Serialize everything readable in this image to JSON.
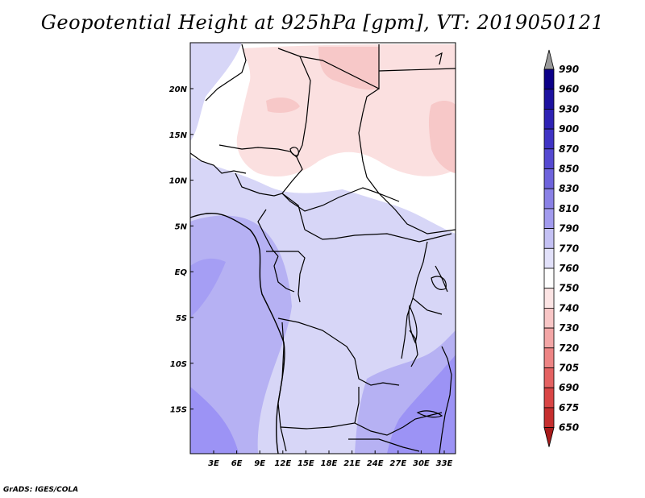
{
  "title": "Geopotential Height at 925hPa [gpm], VT: 2019050121",
  "credit": "GrADS: IGES/COLA",
  "colors": {
    "strong_blue": "#9c93f5",
    "mid_blue": "#b6b1f3",
    "light_blue": "#d7d6f7",
    "white": "#ffffff",
    "light_red": "#fbe0e0",
    "mid_red": "#f7c8c8"
  },
  "map": {
    "lat_labels": [
      "20N",
      "15N",
      "10N",
      "5N",
      "EQ",
      "5S",
      "10S",
      "15S"
    ],
    "lon_labels": [
      "3E",
      "6E",
      "9E",
      "12E",
      "15E",
      "18E",
      "21E",
      "24E",
      "27E",
      "30E",
      "33E"
    ]
  },
  "colorbar": {
    "levels": [
      {
        "label": "990",
        "color": "#0c0088"
      },
      {
        "label": "960",
        "color": "#1d12a0"
      },
      {
        "label": "930",
        "color": "#2e22b4"
      },
      {
        "label": "900",
        "color": "#3f33c4"
      },
      {
        "label": "870",
        "color": "#5549d1"
      },
      {
        "label": "850",
        "color": "#6e63dc"
      },
      {
        "label": "830",
        "color": "#8a81e6"
      },
      {
        "label": "810",
        "color": "#a29bee"
      },
      {
        "label": "790",
        "color": "#c4c1f4"
      },
      {
        "label": "770",
        "color": "#e2e1fa"
      },
      {
        "label": "760",
        "color": "#ffffff"
      },
      {
        "label": "750",
        "color": "#fce4e4"
      },
      {
        "label": "740",
        "color": "#f8c6c6"
      },
      {
        "label": "730",
        "color": "#f3a6a6"
      },
      {
        "label": "720",
        "color": "#ed8484"
      },
      {
        "label": "705",
        "color": "#e46262"
      },
      {
        "label": "690",
        "color": "#d94545"
      },
      {
        "label": "675",
        "color": "#c52e2e"
      },
      {
        "label": "650",
        "color": "#a81a1a"
      }
    ]
  }
}
